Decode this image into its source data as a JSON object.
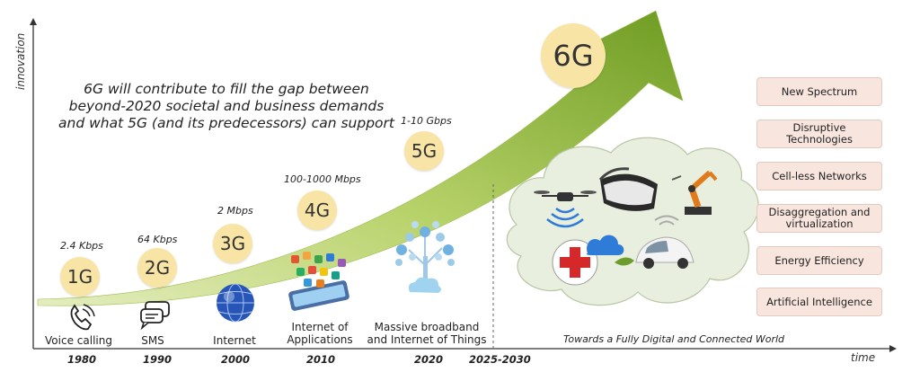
{
  "axes": {
    "y_label": "innovation",
    "x_label": "time"
  },
  "statement": "6G will contribute to fill the gap between beyond-2020 societal and business demands and what 5G (and its predecessors) can support",
  "generations": [
    {
      "name": "1G",
      "speed": "2.4 Kbps",
      "application": "Voice calling",
      "year": "1980",
      "icon": "phone-icon"
    },
    {
      "name": "2G",
      "speed": "64 Kbps",
      "application": "SMS",
      "year": "1990",
      "icon": "chat-bubbles-icon"
    },
    {
      "name": "3G",
      "speed": "2 Mbps",
      "application": "Internet",
      "year": "2000",
      "icon": "globe-icon"
    },
    {
      "name": "4G",
      "speed": "100-1000 Mbps",
      "application": "Internet of Applications",
      "year": "2010",
      "icon": "smartphone-apps-icon"
    },
    {
      "name": "5G",
      "speed": "1-10 Gbps",
      "application": "Massive broadband and Internet of Things",
      "year": "2020",
      "icon": "iot-tree-icon"
    },
    {
      "name": "6G",
      "year": "2025-2030"
    }
  ],
  "future": {
    "caption": "Towards a Fully Digital and Connected World",
    "icons": [
      "drone-icon",
      "vr-headset-icon",
      "robot-arm-icon",
      "medical-cross-icon",
      "cloud-icon",
      "connected-car-icon",
      "leaf-icon"
    ]
  },
  "technologies": [
    "New Spectrum",
    "Disruptive Technologies",
    "Cell-less Networks",
    "Disaggregation and virtualization",
    "Energy Efficiency",
    "Artificial Intelligence"
  ],
  "colors": {
    "arrow_light": "#d6e5a0",
    "arrow_dark": "#7aa528",
    "circle": "#f8e5a6",
    "tech_box": "#f8e6de",
    "cloud": "#e7eedc"
  }
}
